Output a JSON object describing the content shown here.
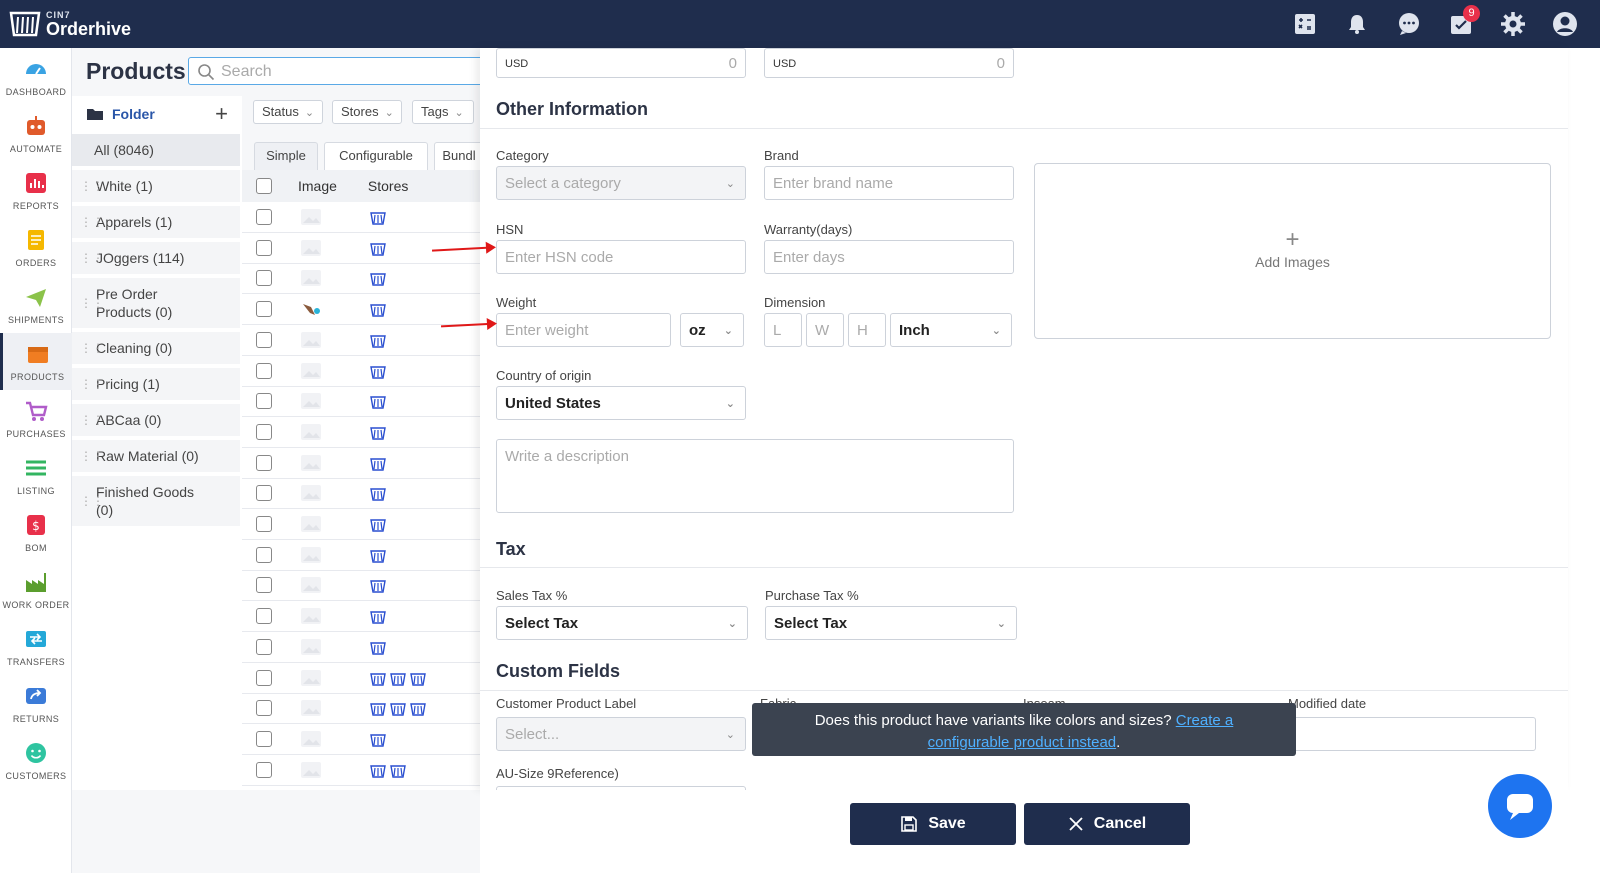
{
  "app": {
    "brand_top": "CIN7",
    "brand_name": "Orderhive"
  },
  "topbar": {
    "notification_count": "9"
  },
  "nav": [
    {
      "label": "DASHBOARD",
      "icon": "dashboard-icon",
      "color": "#3aa3e3"
    },
    {
      "label": "AUTOMATE",
      "icon": "robot-icon",
      "color": "#e05a2b"
    },
    {
      "label": "REPORTS",
      "icon": "reports-icon",
      "color": "#e8304a"
    },
    {
      "label": "ORDERS",
      "icon": "orders-icon",
      "color": "#f5b800"
    },
    {
      "label": "SHIPMENTS",
      "icon": "plane-icon",
      "color": "#8bc34a"
    },
    {
      "label": "PRODUCTS",
      "icon": "products-icon",
      "color": "#f07d22"
    },
    {
      "label": "PURCHASES",
      "icon": "cart-icon",
      "color": "#b05cc9"
    },
    {
      "label": "LISTING",
      "icon": "listing-icon",
      "color": "#33b561"
    },
    {
      "label": "BOM",
      "icon": "bom-icon",
      "color": "#e8304a"
    },
    {
      "label": "WORK ORDER",
      "icon": "factory-icon",
      "color": "#5b9e2e"
    },
    {
      "label": "TRANSFERS",
      "icon": "transfers-icon",
      "color": "#24a8d8"
    },
    {
      "label": "RETURNS",
      "icon": "returns-icon",
      "color": "#3b7bd8"
    },
    {
      "label": "CUSTOMERS",
      "icon": "customers-icon",
      "color": "#2ec4a0"
    }
  ],
  "products": {
    "title": "Products",
    "search_placeholder": "Search"
  },
  "folders": {
    "header": "Folder",
    "items": [
      "All (8046)",
      "White (1)",
      "Apparels (1)",
      "JOggers (114)",
      "Pre Order Products (0)",
      "Cleaning (0)",
      "Pricing (1)",
      "ABCaa (0)",
      "Raw Material (0)",
      "Finished Goods (0)"
    ]
  },
  "filters": {
    "status": "Status",
    "stores": "Stores",
    "tags": "Tags"
  },
  "tabs": [
    "Simple",
    "Configurable",
    "Bundl"
  ],
  "table": {
    "col_image": "Image",
    "col_stores": "Stores"
  },
  "form": {
    "currency_1": "USD",
    "currency_1_value": "0",
    "currency_2": "USD",
    "currency_2_value": "0",
    "other_info_title": "Other Information",
    "category_label": "Category",
    "category_placeholder": "Select a category",
    "brand_label": "Brand",
    "brand_placeholder": "Enter brand name",
    "hsn_label": "HSN",
    "hsn_placeholder": "Enter HSN code",
    "warranty_label": "Warranty(days)",
    "warranty_placeholder": "Enter days",
    "weight_label": "Weight",
    "weight_placeholder": "Enter weight",
    "weight_unit": "oz",
    "dimension_label": "Dimension",
    "dim_l": "L",
    "dim_w": "W",
    "dim_h": "H",
    "dim_unit": "Inch",
    "country_label": "Country of origin",
    "country_value": "United States",
    "description_placeholder": "Write a description",
    "add_images": "Add Images",
    "tax_title": "Tax",
    "sales_tax_label": "Sales Tax %",
    "sales_tax_value": "Select Tax",
    "purchase_tax_label": "Purchase Tax %",
    "purchase_tax_value": "Select Tax",
    "custom_title": "Custom Fields",
    "customer_label_label": "Customer Product Label",
    "customer_label_placeholder": "Select...",
    "fabric_label": "Fabric",
    "inseam_label": "Inseam",
    "modified_label": "Modified date",
    "au_size_label": "AU-Size 9Reference)"
  },
  "tooltip": {
    "text": "Does this product have variants like colors and sizes?",
    "link_1": "Create a",
    "link_2": "configurable product instead",
    "tail": "."
  },
  "buttons": {
    "save": "Save",
    "cancel": "Cancel"
  }
}
